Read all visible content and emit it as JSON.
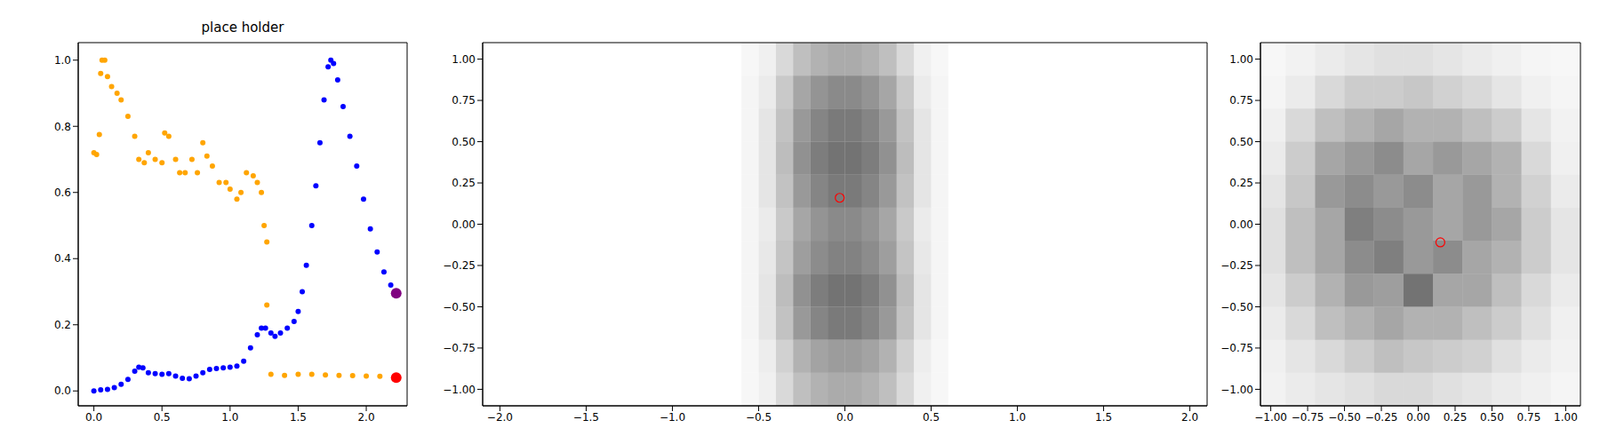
{
  "chart_data": [
    {
      "type": "scatter",
      "title": "place holder",
      "xlim": [
        -0.115,
        2.3
      ],
      "xticks": [
        {
          "value": 0,
          "label": "0.0"
        },
        {
          "value": 0.5,
          "label": "0.5"
        },
        {
          "value": 1,
          "label": "1.0"
        },
        {
          "value": 1.5,
          "label": "1.5"
        },
        {
          "value": 2,
          "label": "2.0"
        }
      ],
      "ylim": [
        -0.045,
        1.053
      ],
      "yticks": [
        {
          "value": 0,
          "label": "0.0"
        },
        {
          "value": 0.2,
          "label": "0.2"
        },
        {
          "value": 0.4,
          "label": "0.4"
        },
        {
          "value": 0.6,
          "label": "0.6"
        },
        {
          "value": 0.8,
          "label": "0.8"
        },
        {
          "value": 1,
          "label": "1.0"
        }
      ],
      "series": [
        {
          "color": "#0000ff",
          "marker": "dot",
          "x": [
            0.0,
            0.05,
            0.1,
            0.15,
            0.2,
            0.25,
            0.3,
            0.33,
            0.36,
            0.4,
            0.45,
            0.5,
            0.55,
            0.6,
            0.65,
            0.7,
            0.75,
            0.8,
            0.85,
            0.9,
            0.95,
            1.0,
            1.05,
            1.1,
            1.15,
            1.2,
            1.23,
            1.26,
            1.3,
            1.33,
            1.37,
            1.42,
            1.47,
            1.5,
            1.53,
            1.56,
            1.6,
            1.63,
            1.66,
            1.69,
            1.72,
            1.74,
            1.76,
            1.79,
            1.83,
            1.88,
            1.93,
            1.98,
            2.03,
            2.08,
            2.13,
            2.18
          ],
          "values": [
            0.0,
            0.003,
            0.005,
            0.01,
            0.02,
            0.035,
            0.06,
            0.072,
            0.07,
            0.055,
            0.052,
            0.05,
            0.052,
            0.045,
            0.038,
            0.037,
            0.045,
            0.055,
            0.065,
            0.068,
            0.07,
            0.072,
            0.075,
            0.09,
            0.13,
            0.17,
            0.19,
            0.19,
            0.175,
            0.165,
            0.175,
            0.19,
            0.21,
            0.24,
            0.3,
            0.38,
            0.5,
            0.62,
            0.75,
            0.88,
            0.98,
            1.0,
            0.99,
            0.94,
            0.86,
            0.77,
            0.68,
            0.58,
            0.49,
            0.42,
            0.36,
            0.32
          ]
        },
        {
          "color": "#ffa500",
          "marker": "dot",
          "x": [
            0.0,
            0.02,
            0.04,
            0.05,
            0.06,
            0.08,
            0.1,
            0.13,
            0.17,
            0.2,
            0.25,
            0.3,
            0.33,
            0.37,
            0.4,
            0.45,
            0.5,
            0.52,
            0.55,
            0.6,
            0.63,
            0.67,
            0.72,
            0.76,
            0.8,
            0.83,
            0.87,
            0.92,
            0.97,
            1.0,
            1.05,
            1.08,
            1.12,
            1.17,
            1.2,
            1.23,
            1.25,
            1.27,
            1.27,
            1.3,
            1.4,
            1.5,
            1.6,
            1.7,
            1.8,
            1.9,
            2.0,
            2.1
          ],
          "values": [
            0.72,
            0.715,
            0.775,
            0.96,
            1.0,
            1.0,
            0.95,
            0.92,
            0.9,
            0.88,
            0.83,
            0.77,
            0.7,
            0.69,
            0.72,
            0.7,
            0.69,
            0.78,
            0.77,
            0.7,
            0.66,
            0.66,
            0.7,
            0.66,
            0.75,
            0.71,
            0.68,
            0.63,
            0.63,
            0.61,
            0.58,
            0.6,
            0.66,
            0.65,
            0.63,
            0.6,
            0.5,
            0.45,
            0.26,
            0.05,
            0.047,
            0.05,
            0.05,
            0.048,
            0.047,
            0.046,
            0.045,
            0.044
          ]
        },
        {
          "color": "#800080",
          "marker": "large_dot",
          "x": [
            2.22
          ],
          "values": [
            0.295
          ]
        },
        {
          "color": "#ff0000",
          "marker": "large_dot",
          "x": [
            2.22
          ],
          "values": [
            0.04
          ]
        }
      ]
    },
    {
      "type": "density",
      "xlim": [
        -2.1,
        2.1
      ],
      "xticks": [
        {
          "value": -2,
          "label": "−2.0"
        },
        {
          "value": -1.5,
          "label": "−1.5"
        },
        {
          "value": -1,
          "label": "−1.0"
        },
        {
          "value": -0.5,
          "label": "−0.5"
        },
        {
          "value": 0,
          "label": "0.0"
        },
        {
          "value": 0.5,
          "label": "0.5"
        },
        {
          "value": 1,
          "label": "1.0"
        },
        {
          "value": 1.5,
          "label": "1.5"
        },
        {
          "value": 2,
          "label": "2.0"
        }
      ],
      "ylim": [
        -1.1,
        1.1
      ],
      "yticks": [
        {
          "value": -1,
          "label": "−1.00"
        },
        {
          "value": -0.75,
          "label": "−0.75"
        },
        {
          "value": -0.5,
          "label": "−0.50"
        },
        {
          "value": -0.25,
          "label": "−0.25"
        },
        {
          "value": 0,
          "label": "0.00"
        },
        {
          "value": 0.25,
          "label": "0.25"
        },
        {
          "value": 0.5,
          "label": "0.50"
        },
        {
          "value": 0.75,
          "label": "0.75"
        },
        {
          "value": 1,
          "label": "1.00"
        }
      ],
      "color": "#000000",
      "density": {
        "x_edges": [
          -0.6,
          -0.5,
          -0.4,
          -0.3,
          -0.2,
          -0.1,
          0.0,
          0.1,
          0.2,
          0.3,
          0.4,
          0.5,
          0.6
        ],
        "y_edges": [
          -1.1,
          -0.9,
          -0.7,
          -0.5,
          -0.3,
          -0.1,
          0.1,
          0.3,
          0.5,
          0.7,
          0.9,
          1.1
        ],
        "cells": [
          [
            0.03,
            0.06,
            0.15,
            0.25,
            0.3,
            0.33,
            0.33,
            0.3,
            0.25,
            0.15,
            0.06,
            0.03
          ],
          [
            0.03,
            0.07,
            0.18,
            0.3,
            0.36,
            0.39,
            0.39,
            0.36,
            0.3,
            0.18,
            0.07,
            0.03
          ],
          [
            0.04,
            0.1,
            0.24,
            0.4,
            0.48,
            0.52,
            0.52,
            0.48,
            0.4,
            0.24,
            0.1,
            0.04
          ],
          [
            0.04,
            0.1,
            0.26,
            0.43,
            0.51,
            0.55,
            0.55,
            0.51,
            0.43,
            0.26,
            0.1,
            0.04
          ],
          [
            0.04,
            0.09,
            0.23,
            0.38,
            0.45,
            0.49,
            0.49,
            0.45,
            0.38,
            0.23,
            0.09,
            0.04
          ],
          [
            0.04,
            0.08,
            0.21,
            0.35,
            0.42,
            0.46,
            0.46,
            0.42,
            0.35,
            0.21,
            0.08,
            0.04
          ],
          [
            0.04,
            0.1,
            0.24,
            0.4,
            0.48,
            0.52,
            0.52,
            0.48,
            0.4,
            0.24,
            0.1,
            0.04
          ],
          [
            0.04,
            0.1,
            0.26,
            0.43,
            0.51,
            0.55,
            0.55,
            0.51,
            0.43,
            0.26,
            0.1,
            0.04
          ],
          [
            0.04,
            0.1,
            0.24,
            0.4,
            0.48,
            0.52,
            0.52,
            0.48,
            0.4,
            0.24,
            0.1,
            0.04
          ],
          [
            0.04,
            0.08,
            0.21,
            0.35,
            0.42,
            0.46,
            0.46,
            0.42,
            0.35,
            0.21,
            0.08,
            0.04
          ],
          [
            0.03,
            0.06,
            0.15,
            0.25,
            0.3,
            0.33,
            0.33,
            0.3,
            0.25,
            0.15,
            0.06,
            0.03
          ]
        ]
      },
      "series": [
        {
          "color": "#ff0000",
          "marker": "open_circle",
          "x": [
            -0.03
          ],
          "values": [
            0.16
          ]
        }
      ]
    },
    {
      "type": "density",
      "xlim": [
        -1.07,
        1.1
      ],
      "xticks": [
        {
          "value": -1,
          "label": "−1.00"
        },
        {
          "value": -0.75,
          "label": "−0.75"
        },
        {
          "value": -0.5,
          "label": "−0.50"
        },
        {
          "value": -0.25,
          "label": "−0.25"
        },
        {
          "value": 0,
          "label": "0.00"
        },
        {
          "value": 0.25,
          "label": "0.25"
        },
        {
          "value": 0.5,
          "label": "0.50"
        },
        {
          "value": 0.75,
          "label": "0.75"
        },
        {
          "value": 1,
          "label": "1.00"
        }
      ],
      "ylim": [
        -1.1,
        1.1
      ],
      "yticks": [
        {
          "value": -1,
          "label": "−1.00"
        },
        {
          "value": -0.75,
          "label": "−0.75"
        },
        {
          "value": -0.5,
          "label": "−0.50"
        },
        {
          "value": -0.25,
          "label": "−0.25"
        },
        {
          "value": 0,
          "label": "0.00"
        },
        {
          "value": 0.25,
          "label": "0.25"
        },
        {
          "value": 0.5,
          "label": "0.50"
        },
        {
          "value": 0.75,
          "label": "0.75"
        },
        {
          "value": 1,
          "label": "1.00"
        }
      ],
      "color": "#000000",
      "density": {
        "x_edges": [
          -1.1,
          -0.9,
          -0.7,
          -0.5,
          -0.3,
          -0.1,
          0.1,
          0.3,
          0.5,
          0.7,
          0.9,
          1.1
        ],
        "y_edges": [
          -1.1,
          -0.9,
          -0.7,
          -0.5,
          -0.3,
          -0.1,
          0.1,
          0.3,
          0.5,
          0.7,
          0.9,
          1.1
        ],
        "cells": [
          [
            0.05,
            0.08,
            0.1,
            0.12,
            0.15,
            0.15,
            0.12,
            0.1,
            0.08,
            0.06,
            0.04
          ],
          [
            0.06,
            0.1,
            0.15,
            0.2,
            0.25,
            0.22,
            0.2,
            0.18,
            0.12,
            0.08,
            0.05
          ],
          [
            0.08,
            0.15,
            0.25,
            0.3,
            0.35,
            0.3,
            0.3,
            0.25,
            0.2,
            0.12,
            0.06
          ],
          [
            0.1,
            0.2,
            0.3,
            0.4,
            0.38,
            0.55,
            0.35,
            0.35,
            0.25,
            0.15,
            0.08
          ],
          [
            0.12,
            0.25,
            0.35,
            0.45,
            0.5,
            0.4,
            0.45,
            0.35,
            0.3,
            0.2,
            0.1
          ],
          [
            0.12,
            0.25,
            0.35,
            0.5,
            0.45,
            0.4,
            0.35,
            0.4,
            0.35,
            0.2,
            0.1
          ],
          [
            0.1,
            0.22,
            0.4,
            0.45,
            0.4,
            0.45,
            0.35,
            0.4,
            0.3,
            0.18,
            0.08
          ],
          [
            0.08,
            0.2,
            0.35,
            0.4,
            0.45,
            0.35,
            0.4,
            0.35,
            0.3,
            0.15,
            0.06
          ],
          [
            0.06,
            0.15,
            0.25,
            0.3,
            0.35,
            0.3,
            0.3,
            0.25,
            0.2,
            0.1,
            0.05
          ],
          [
            0.04,
            0.08,
            0.15,
            0.2,
            0.2,
            0.22,
            0.18,
            0.15,
            0.1,
            0.06,
            0.04
          ],
          [
            0.03,
            0.05,
            0.08,
            0.1,
            0.12,
            0.12,
            0.1,
            0.08,
            0.06,
            0.04,
            0.03
          ]
        ]
      },
      "series": [
        {
          "color": "#ff0000",
          "marker": "open_circle",
          "x": [
            0.15
          ],
          "values": [
            -0.11
          ]
        }
      ]
    }
  ]
}
